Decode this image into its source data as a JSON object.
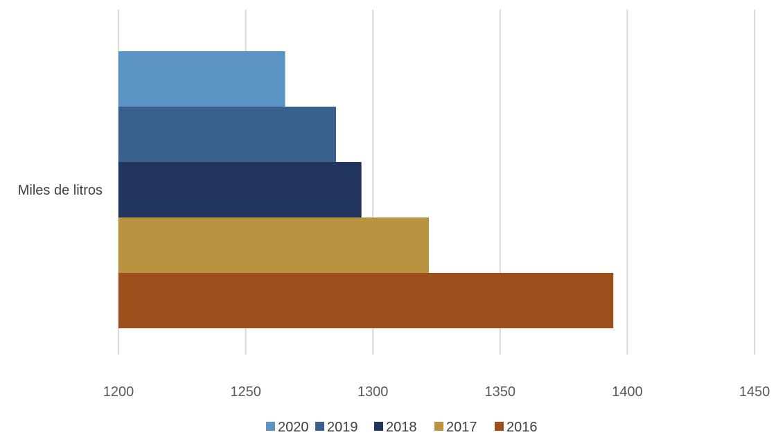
{
  "chart_data": {
    "type": "bar",
    "orientation": "horizontal",
    "categories": [
      "Miles de litros"
    ],
    "series": [
      {
        "name": "2020",
        "values": [
          1265.5
        ],
        "color": "#5B93C4"
      },
      {
        "name": "2019",
        "values": [
          1285.5
        ],
        "color": "#3A618E"
      },
      {
        "name": "2018",
        "values": [
          1295.5
        ],
        "color": "#21345D"
      },
      {
        "name": "2017",
        "values": [
          1322
        ],
        "color": "#B99440"
      },
      {
        "name": "2016",
        "values": [
          1394.5
        ],
        "color": "#9C4F1A"
      }
    ],
    "xlim": [
      1200,
      1450
    ],
    "xticks": [
      "1200",
      "1250",
      "1300",
      "1350",
      "1400",
      "1450"
    ],
    "grid": true,
    "gridlines_color": "#D9D9D9",
    "legend_position": "bottom",
    "title": "",
    "xlabel": "",
    "ylabel": ""
  }
}
